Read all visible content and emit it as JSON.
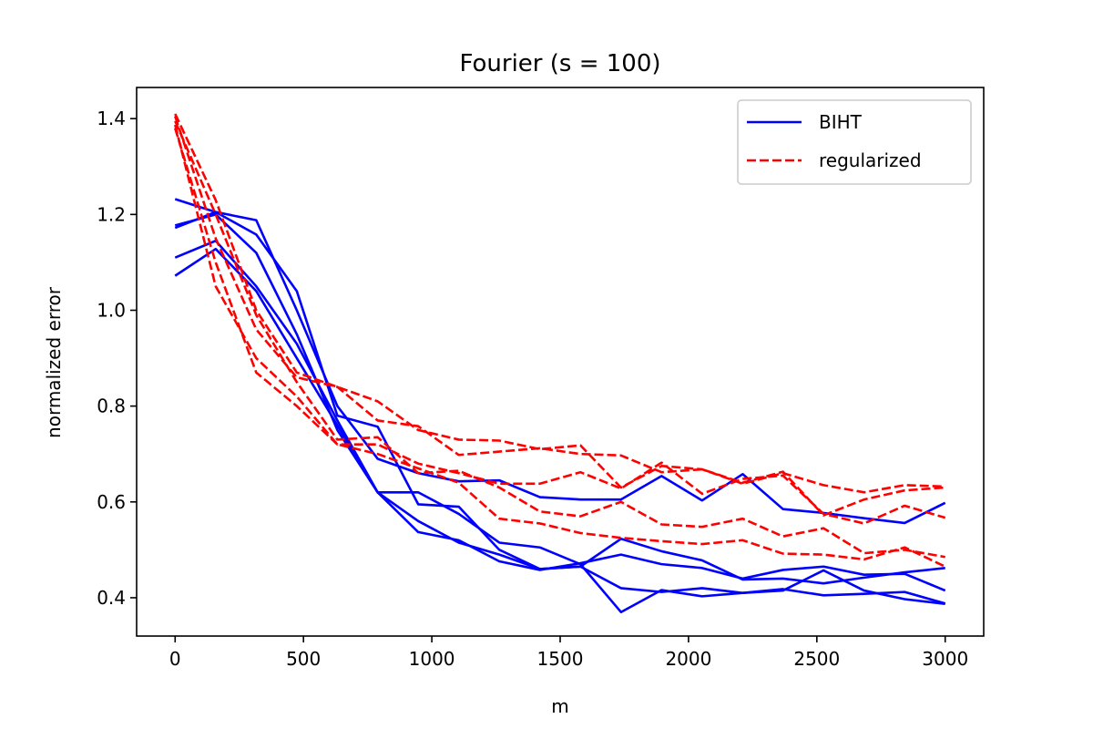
{
  "chart_data": {
    "type": "line",
    "title": "Fourier (s = 100)",
    "xlabel": "m",
    "ylabel": "normalized error",
    "xlim": [
      -150,
      3150
    ],
    "ylim": [
      0.32,
      1.465
    ],
    "xticks": [
      0,
      500,
      1000,
      1500,
      2000,
      2500,
      3000
    ],
    "xtick_labels": [
      "0",
      "500",
      "1000",
      "1500",
      "2000",
      "2500",
      "3000"
    ],
    "yticks": [
      0.4,
      0.6,
      0.8,
      1.0,
      1.2,
      1.4
    ],
    "ytick_labels": [
      "0.4",
      "0.6",
      "0.8",
      "1.0",
      "1.2",
      "1.4"
    ],
    "grid": false,
    "legend": {
      "position": "top-right",
      "entries": [
        {
          "label": "BIHT",
          "color": "#0000ff",
          "style": "solid"
        },
        {
          "label": "regularized",
          "color": "#ff0000",
          "style": "dashed"
        }
      ]
    },
    "x": [
      0,
      158,
      316,
      474,
      632,
      789,
      947,
      1105,
      1263,
      1421,
      1579,
      1737,
      1895,
      2053,
      2211,
      2368,
      2526,
      2684,
      2842,
      3000
    ],
    "series": [
      {
        "group": "BIHT",
        "color": "#0000ff",
        "style": "solid",
        "values": [
          1.232,
          1.205,
          1.188,
          1.0,
          0.8,
          0.69,
          0.66,
          0.643,
          0.645,
          0.61,
          0.605,
          0.605,
          0.654,
          0.603,
          0.658,
          0.585,
          0.577,
          0.566,
          0.556,
          0.598
        ]
      },
      {
        "group": "BIHT",
        "color": "#0000ff",
        "style": "solid",
        "values": [
          1.172,
          1.205,
          1.158,
          1.04,
          0.78,
          0.757,
          0.595,
          0.59,
          0.5,
          0.46,
          0.465,
          0.523,
          0.497,
          0.478,
          0.438,
          0.44,
          0.43,
          0.442,
          0.453,
          0.462
        ]
      },
      {
        "group": "BIHT",
        "color": "#0000ff",
        "style": "solid",
        "values": [
          1.177,
          1.2,
          1.12,
          0.95,
          0.75,
          0.62,
          0.62,
          0.575,
          0.515,
          0.505,
          0.47,
          0.37,
          0.416,
          0.403,
          0.41,
          0.418,
          0.405,
          0.408,
          0.412,
          0.388
        ]
      },
      {
        "group": "BIHT",
        "color": "#0000ff",
        "style": "solid",
        "values": [
          1.11,
          1.145,
          1.05,
          0.93,
          0.77,
          0.62,
          0.56,
          0.515,
          0.49,
          0.46,
          0.465,
          0.42,
          0.412,
          0.42,
          0.41,
          0.415,
          0.457,
          0.415,
          0.397,
          0.387
        ]
      },
      {
        "group": "BIHT",
        "color": "#0000ff",
        "style": "solid",
        "values": [
          1.072,
          1.128,
          1.04,
          0.9,
          0.76,
          0.62,
          0.537,
          0.52,
          0.476,
          0.458,
          0.472,
          0.49,
          0.47,
          0.462,
          0.44,
          0.458,
          0.465,
          0.448,
          0.45,
          0.415
        ]
      },
      {
        "group": "regularized",
        "color": "#ff0000",
        "style": "dashed",
        "values": [
          1.41,
          1.23,
          1.0,
          0.87,
          0.84,
          0.81,
          0.75,
          0.73,
          0.728,
          0.71,
          0.718,
          0.63,
          0.675,
          0.668,
          0.638,
          0.66,
          0.635,
          0.62,
          0.635,
          0.632
        ]
      },
      {
        "group": "regularized",
        "color": "#ff0000",
        "style": "dashed",
        "values": [
          1.395,
          1.2,
          0.99,
          0.85,
          0.73,
          0.735,
          0.66,
          0.665,
          0.63,
          0.58,
          0.57,
          0.6,
          0.553,
          0.548,
          0.565,
          0.528,
          0.545,
          0.493,
          0.5,
          0.485
        ]
      },
      {
        "group": "regularized",
        "color": "#ff0000",
        "style": "dashed",
        "values": [
          1.387,
          1.05,
          0.9,
          0.82,
          0.72,
          0.7,
          0.67,
          0.64,
          0.565,
          0.555,
          0.535,
          0.525,
          0.518,
          0.512,
          0.52,
          0.492,
          0.49,
          0.48,
          0.505,
          0.465
        ]
      },
      {
        "group": "regularized",
        "color": "#ff0000",
        "style": "dashed",
        "values": [
          1.38,
          1.1,
          0.87,
          0.8,
          0.72,
          0.72,
          0.68,
          0.66,
          0.638,
          0.638,
          0.662,
          0.628,
          0.682,
          0.617,
          0.648,
          0.655,
          0.575,
          0.555,
          0.592,
          0.567
        ]
      },
      {
        "group": "regularized",
        "color": "#ff0000",
        "style": "dashed",
        "values": [
          1.405,
          1.15,
          0.96,
          0.86,
          0.84,
          0.77,
          0.758,
          0.698,
          0.705,
          0.712,
          0.7,
          0.697,
          0.662,
          0.668,
          0.64,
          0.663,
          0.572,
          0.605,
          0.624,
          0.63
        ]
      }
    ]
  }
}
